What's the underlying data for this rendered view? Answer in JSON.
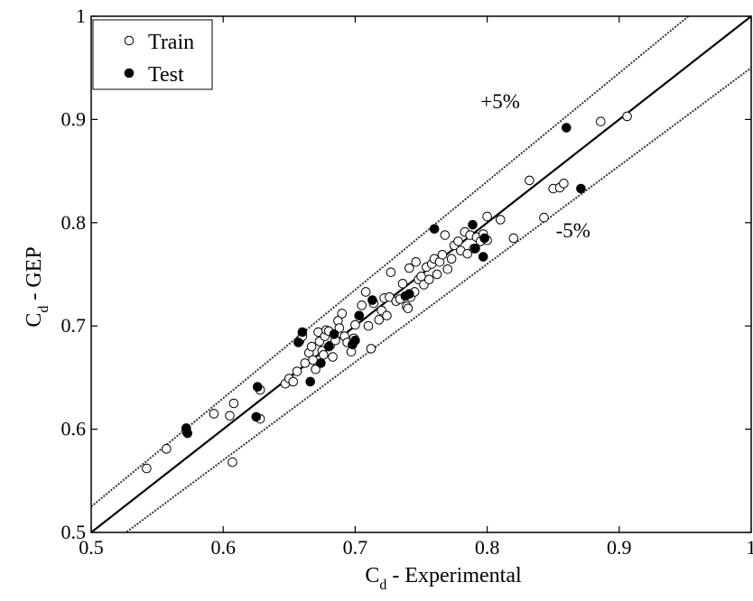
{
  "chart_data": {
    "type": "scatter",
    "xlabel": {
      "main": "C",
      "sub": "d",
      "rest": " - Experimental"
    },
    "ylabel": {
      "main": "C",
      "sub": "d",
      "rest": " - GEP"
    },
    "xlim": [
      0.5,
      1
    ],
    "ylim": [
      0.5,
      1
    ],
    "x_ticks": [
      "0.5",
      "0.6",
      "0.7",
      "0.8",
      "0.9",
      "1"
    ],
    "y_ticks": [
      "0.5",
      "0.6",
      "0.7",
      "0.8",
      "0.9",
      "1"
    ],
    "x_tick_values": [
      0.5,
      0.6,
      0.7,
      0.8,
      0.9,
      1.0
    ],
    "y_tick_values": [
      0.5,
      0.6,
      0.7,
      0.8,
      0.9,
      1.0
    ],
    "legend": {
      "placement": "top-left",
      "entries": [
        "Train",
        "Test"
      ]
    },
    "grid": false,
    "reference_lines": [
      {
        "kind": "identity",
        "slope": 1.0,
        "style": "solid"
      },
      {
        "kind": "upper",
        "slope": 1.05,
        "style": "dotted",
        "label": "+5%",
        "label_at": [
          0.795,
          0.911
        ]
      },
      {
        "kind": "lower",
        "slope": 0.95,
        "style": "dotted",
        "label": "-5%",
        "label_at": [
          0.852,
          0.786
        ]
      }
    ],
    "series": [
      {
        "name": "Train",
        "marker": "open-circle",
        "points": [
          [
            0.542,
            0.562
          ],
          [
            0.557,
            0.581
          ],
          [
            0.572,
            0.598
          ],
          [
            0.593,
            0.615
          ],
          [
            0.605,
            0.613
          ],
          [
            0.608,
            0.625
          ],
          [
            0.607,
            0.568
          ],
          [
            0.628,
            0.638
          ],
          [
            0.628,
            0.61
          ],
          [
            0.647,
            0.644
          ],
          [
            0.65,
            0.649
          ],
          [
            0.653,
            0.646
          ],
          [
            0.656,
            0.656
          ],
          [
            0.658,
            0.686
          ],
          [
            0.66,
            0.69
          ],
          [
            0.662,
            0.664
          ],
          [
            0.665,
            0.674
          ],
          [
            0.667,
            0.68
          ],
          [
            0.668,
            0.667
          ],
          [
            0.67,
            0.658
          ],
          [
            0.672,
            0.694
          ],
          [
            0.673,
            0.685
          ],
          [
            0.675,
            0.676
          ],
          [
            0.676,
            0.672
          ],
          [
            0.677,
            0.69
          ],
          [
            0.678,
            0.696
          ],
          [
            0.68,
            0.695
          ],
          [
            0.681,
            0.681
          ],
          [
            0.683,
            0.67
          ],
          [
            0.685,
            0.686
          ],
          [
            0.687,
            0.705
          ],
          [
            0.688,
            0.698
          ],
          [
            0.69,
            0.712
          ],
          [
            0.692,
            0.69
          ],
          [
            0.694,
            0.684
          ],
          [
            0.697,
            0.675
          ],
          [
            0.699,
            0.688
          ],
          [
            0.7,
            0.701
          ],
          [
            0.703,
            0.71
          ],
          [
            0.705,
            0.72
          ],
          [
            0.708,
            0.733
          ],
          [
            0.71,
            0.7
          ],
          [
            0.712,
            0.678
          ],
          [
            0.714,
            0.722
          ],
          [
            0.718,
            0.706
          ],
          [
            0.72,
            0.715
          ],
          [
            0.722,
            0.727
          ],
          [
            0.724,
            0.71
          ],
          [
            0.726,
            0.728
          ],
          [
            0.727,
            0.752
          ],
          [
            0.731,
            0.724
          ],
          [
            0.734,
            0.726
          ],
          [
            0.736,
            0.741
          ],
          [
            0.739,
            0.719
          ],
          [
            0.74,
            0.717
          ],
          [
            0.741,
            0.756
          ],
          [
            0.742,
            0.728
          ],
          [
            0.745,
            0.733
          ],
          [
            0.746,
            0.762
          ],
          [
            0.748,
            0.745
          ],
          [
            0.75,
            0.748
          ],
          [
            0.752,
            0.74
          ],
          [
            0.754,
            0.757
          ],
          [
            0.756,
            0.745
          ],
          [
            0.758,
            0.76
          ],
          [
            0.76,
            0.765
          ],
          [
            0.762,
            0.75
          ],
          [
            0.764,
            0.762
          ],
          [
            0.766,
            0.769
          ],
          [
            0.768,
            0.788
          ],
          [
            0.77,
            0.755
          ],
          [
            0.773,
            0.765
          ],
          [
            0.775,
            0.778
          ],
          [
            0.778,
            0.782
          ],
          [
            0.78,
            0.773
          ],
          [
            0.783,
            0.791
          ],
          [
            0.785,
            0.77
          ],
          [
            0.787,
            0.788
          ],
          [
            0.79,
            0.775
          ],
          [
            0.792,
            0.786
          ],
          [
            0.795,
            0.782
          ],
          [
            0.797,
            0.789
          ],
          [
            0.8,
            0.783
          ],
          [
            0.8,
            0.806
          ],
          [
            0.81,
            0.803
          ],
          [
            0.82,
            0.785
          ],
          [
            0.832,
            0.841
          ],
          [
            0.843,
            0.805
          ],
          [
            0.85,
            0.833
          ],
          [
            0.855,
            0.834
          ],
          [
            0.858,
            0.838
          ],
          [
            0.886,
            0.898
          ],
          [
            0.906,
            0.903
          ]
        ]
      },
      {
        "name": "Test",
        "marker": "filled-circle",
        "points": [
          [
            0.572,
            0.601
          ],
          [
            0.573,
            0.596
          ],
          [
            0.625,
            0.612
          ],
          [
            0.626,
            0.641
          ],
          [
            0.657,
            0.684
          ],
          [
            0.66,
            0.694
          ],
          [
            0.666,
            0.646
          ],
          [
            0.674,
            0.664
          ],
          [
            0.68,
            0.68
          ],
          [
            0.684,
            0.692
          ],
          [
            0.698,
            0.682
          ],
          [
            0.7,
            0.686
          ],
          [
            0.703,
            0.71
          ],
          [
            0.713,
            0.725
          ],
          [
            0.738,
            0.729
          ],
          [
            0.741,
            0.731
          ],
          [
            0.76,
            0.794
          ],
          [
            0.789,
            0.798
          ],
          [
            0.791,
            0.775
          ],
          [
            0.797,
            0.767
          ],
          [
            0.798,
            0.785
          ],
          [
            0.86,
            0.892
          ],
          [
            0.871,
            0.833
          ]
        ]
      }
    ]
  }
}
